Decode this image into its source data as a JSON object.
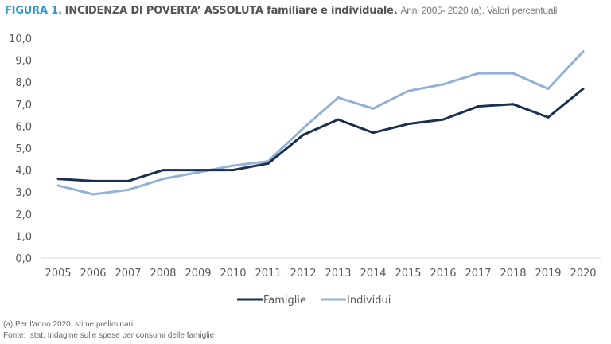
{
  "chart_data": {
    "type": "line",
    "title_prefix": "FIGURA 1.",
    "title": "INCIDENZA DI POVERTA’ ASSOLUTA familiare e individuale.",
    "subtitle": "Anni 2005- 2020 (a). Valori percentuali",
    "x": [
      "2005",
      "2006",
      "2007",
      "2008",
      "2009",
      "2010",
      "2011",
      "2012",
      "2013",
      "2014",
      "2015",
      "2016",
      "2017",
      "2018",
      "2019",
      "2020"
    ],
    "ylim": [
      0,
      10
    ],
    "yticks": [
      "0,0",
      "1,0",
      "2,0",
      "3,0",
      "4,0",
      "5,0",
      "6,0",
      "7,0",
      "8,0",
      "9,0",
      "10,0"
    ],
    "series": [
      {
        "name": "Famiglie",
        "color": "#1b2f4e",
        "values": [
          3.6,
          3.5,
          3.5,
          4.0,
          4.0,
          4.0,
          4.3,
          5.6,
          6.3,
          5.7,
          6.1,
          6.3,
          6.9,
          7.0,
          6.4,
          7.7
        ]
      },
      {
        "name": "Individui",
        "color": "#93b1d6",
        "values": [
          3.3,
          2.9,
          3.1,
          3.6,
          3.9,
          4.2,
          4.4,
          5.9,
          7.3,
          6.8,
          7.6,
          7.9,
          8.4,
          8.4,
          7.7,
          9.4
        ]
      }
    ],
    "legend_position": "bottom-center",
    "grid": false
  },
  "footnotes": {
    "note": "(a)   Per l'anno 2020, stime preliminari",
    "source": "Fonte: Istat, Indagine sulle spese per consumi delle famiglie"
  }
}
